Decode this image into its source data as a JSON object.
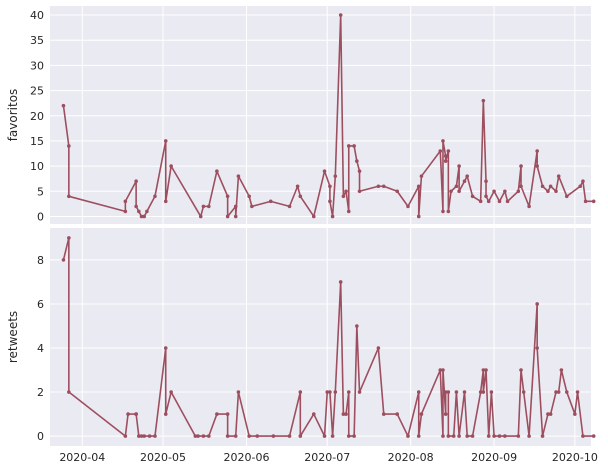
{
  "colors": {
    "panel_bg": "#eaeaf2",
    "grid": "#ffffff",
    "line": "#9e4f5f",
    "text": "#262626"
  },
  "chart_data": [
    {
      "type": "line",
      "ylabel": "favoritos",
      "xlabel": "",
      "ylim": [
        -1.5,
        41.8
      ],
      "yticks": [
        0,
        5,
        10,
        15,
        20,
        25,
        30,
        35,
        40
      ],
      "xlim": [
        "2020-03-20",
        "2020-10-07"
      ],
      "xticks": [
        "2020-04",
        "2020-05",
        "2020-06",
        "2020-07",
        "2020-08",
        "2020-09",
        "2020-10"
      ],
      "grid": true,
      "legend": false,
      "points": [
        [
          "2020-03-25",
          22
        ],
        [
          "2020-03-27",
          14
        ],
        [
          "2020-03-27",
          4
        ],
        [
          "2020-04-17",
          1
        ],
        [
          "2020-04-17",
          3
        ],
        [
          "2020-04-21",
          7
        ],
        [
          "2020-04-21",
          2
        ],
        [
          "2020-04-22",
          1
        ],
        [
          "2020-04-23",
          0
        ],
        [
          "2020-04-24",
          0
        ],
        [
          "2020-04-25",
          1
        ],
        [
          "2020-04-28",
          4
        ],
        [
          "2020-05-02",
          15
        ],
        [
          "2020-05-02",
          3
        ],
        [
          "2020-05-04",
          10
        ],
        [
          "2020-05-15",
          0
        ],
        [
          "2020-05-16",
          2
        ],
        [
          "2020-05-18",
          2
        ],
        [
          "2020-05-21",
          9
        ],
        [
          "2020-05-25",
          4
        ],
        [
          "2020-05-25",
          0
        ],
        [
          "2020-05-28",
          2
        ],
        [
          "2020-05-28",
          0
        ],
        [
          "2020-05-29",
          8
        ],
        [
          "2020-06-02",
          4
        ],
        [
          "2020-06-03",
          2
        ],
        [
          "2020-06-10",
          3
        ],
        [
          "2020-06-17",
          2
        ],
        [
          "2020-06-20",
          6
        ],
        [
          "2020-06-21",
          4
        ],
        [
          "2020-06-26",
          0
        ],
        [
          "2020-06-30",
          9
        ],
        [
          "2020-07-02",
          6
        ],
        [
          "2020-07-02",
          3
        ],
        [
          "2020-07-03",
          0
        ],
        [
          "2020-07-04",
          8
        ],
        [
          "2020-07-06",
          40
        ],
        [
          "2020-07-07",
          4
        ],
        [
          "2020-07-08",
          5
        ],
        [
          "2020-07-09",
          1
        ],
        [
          "2020-07-09",
          14
        ],
        [
          "2020-07-11",
          14
        ],
        [
          "2020-07-12",
          11
        ],
        [
          "2020-07-13",
          9
        ],
        [
          "2020-07-13",
          5
        ],
        [
          "2020-07-20",
          6
        ],
        [
          "2020-07-22",
          6
        ],
        [
          "2020-07-27",
          5
        ],
        [
          "2020-07-31",
          2
        ],
        [
          "2020-08-04",
          6
        ],
        [
          "2020-08-04",
          0
        ],
        [
          "2020-08-05",
          8
        ],
        [
          "2020-08-12",
          13
        ],
        [
          "2020-08-13",
          1
        ],
        [
          "2020-08-13",
          15
        ],
        [
          "2020-08-14",
          12
        ],
        [
          "2020-08-14",
          11
        ],
        [
          "2020-08-15",
          13
        ],
        [
          "2020-08-15",
          1
        ],
        [
          "2020-08-16",
          5
        ],
        [
          "2020-08-18",
          6
        ],
        [
          "2020-08-19",
          10
        ],
        [
          "2020-08-19",
          5
        ],
        [
          "2020-08-21",
          7
        ],
        [
          "2020-08-22",
          8
        ],
        [
          "2020-08-24",
          4
        ],
        [
          "2020-08-27",
          3
        ],
        [
          "2020-08-28",
          23
        ],
        [
          "2020-08-29",
          7
        ],
        [
          "2020-08-29",
          4
        ],
        [
          "2020-08-30",
          3
        ],
        [
          "2020-09-01",
          5
        ],
        [
          "2020-09-03",
          3
        ],
        [
          "2020-09-05",
          5
        ],
        [
          "2020-09-06",
          3
        ],
        [
          "2020-09-10",
          5
        ],
        [
          "2020-09-11",
          10
        ],
        [
          "2020-09-11",
          6
        ],
        [
          "2020-09-14",
          2
        ],
        [
          "2020-09-17",
          13
        ],
        [
          "2020-09-17",
          10
        ],
        [
          "2020-09-19",
          6
        ],
        [
          "2020-09-21",
          5
        ],
        [
          "2020-09-22",
          6
        ],
        [
          "2020-09-24",
          5
        ],
        [
          "2020-09-25",
          8
        ],
        [
          "2020-09-28",
          4
        ],
        [
          "2020-10-03",
          6
        ],
        [
          "2020-10-04",
          7
        ],
        [
          "2020-10-05",
          3
        ],
        [
          "2020-10-08",
          3
        ]
      ]
    },
    {
      "type": "line",
      "ylabel": "retweets",
      "xlabel": "",
      "ylim": [
        -0.45,
        9.45
      ],
      "yticks": [
        0,
        2,
        4,
        6,
        8
      ],
      "xlim": [
        "2020-03-20",
        "2020-10-07"
      ],
      "xticks": [
        "2020-04",
        "2020-05",
        "2020-06",
        "2020-07",
        "2020-08",
        "2020-09",
        "2020-10"
      ],
      "grid": true,
      "legend": false,
      "points": [
        [
          "2020-03-25",
          8
        ],
        [
          "2020-03-27",
          9
        ],
        [
          "2020-03-27",
          2
        ],
        [
          "2020-04-17",
          0
        ],
        [
          "2020-04-18",
          1
        ],
        [
          "2020-04-21",
          1
        ],
        [
          "2020-04-21",
          1
        ],
        [
          "2020-04-22",
          0
        ],
        [
          "2020-04-23",
          0
        ],
        [
          "2020-04-24",
          0
        ],
        [
          "2020-04-26",
          0
        ],
        [
          "2020-04-28",
          0
        ],
        [
          "2020-05-02",
          4
        ],
        [
          "2020-05-02",
          1
        ],
        [
          "2020-05-04",
          2
        ],
        [
          "2020-05-13",
          0
        ],
        [
          "2020-05-14",
          0
        ],
        [
          "2020-05-16",
          0
        ],
        [
          "2020-05-18",
          0
        ],
        [
          "2020-05-21",
          1
        ],
        [
          "2020-05-25",
          1
        ],
        [
          "2020-05-25",
          0
        ],
        [
          "2020-05-28",
          0
        ],
        [
          "2020-05-29",
          2
        ],
        [
          "2020-06-02",
          0
        ],
        [
          "2020-06-05",
          0
        ],
        [
          "2020-06-11",
          0
        ],
        [
          "2020-06-17",
          0
        ],
        [
          "2020-06-21",
          2
        ],
        [
          "2020-06-21",
          0
        ],
        [
          "2020-06-26",
          1
        ],
        [
          "2020-06-30",
          0
        ],
        [
          "2020-07-01",
          2
        ],
        [
          "2020-07-02",
          2
        ],
        [
          "2020-07-03",
          0
        ],
        [
          "2020-07-04",
          2
        ],
        [
          "2020-07-06",
          7
        ],
        [
          "2020-07-07",
          1
        ],
        [
          "2020-07-08",
          1
        ],
        [
          "2020-07-09",
          2
        ],
        [
          "2020-07-09",
          0
        ],
        [
          "2020-07-11",
          0
        ],
        [
          "2020-07-12",
          5
        ],
        [
          "2020-07-13",
          2
        ],
        [
          "2020-07-20",
          4
        ],
        [
          "2020-07-22",
          1
        ],
        [
          "2020-07-27",
          1
        ],
        [
          "2020-07-31",
          0
        ],
        [
          "2020-08-04",
          2
        ],
        [
          "2020-08-04",
          0
        ],
        [
          "2020-08-05",
          1
        ],
        [
          "2020-08-12",
          3
        ],
        [
          "2020-08-13",
          0
        ],
        [
          "2020-08-13",
          3
        ],
        [
          "2020-08-14",
          1
        ],
        [
          "2020-08-14",
          2
        ],
        [
          "2020-08-15",
          2
        ],
        [
          "2020-08-15",
          0
        ],
        [
          "2020-08-17",
          0
        ],
        [
          "2020-08-18",
          2
        ],
        [
          "2020-08-19",
          0
        ],
        [
          "2020-08-21",
          2
        ],
        [
          "2020-08-22",
          0
        ],
        [
          "2020-08-24",
          0
        ],
        [
          "2020-08-27",
          2
        ],
        [
          "2020-08-28",
          3
        ],
        [
          "2020-08-28",
          2
        ],
        [
          "2020-08-29",
          3
        ],
        [
          "2020-08-30",
          0
        ],
        [
          "2020-08-31",
          2
        ],
        [
          "2020-09-01",
          0
        ],
        [
          "2020-09-03",
          0
        ],
        [
          "2020-09-05",
          0
        ],
        [
          "2020-09-10",
          0
        ],
        [
          "2020-09-11",
          3
        ],
        [
          "2020-09-12",
          2
        ],
        [
          "2020-09-14",
          0
        ],
        [
          "2020-09-17",
          6
        ],
        [
          "2020-09-17",
          4
        ],
        [
          "2020-09-19",
          0
        ],
        [
          "2020-09-21",
          1
        ],
        [
          "2020-09-22",
          1
        ],
        [
          "2020-09-24",
          2
        ],
        [
          "2020-09-25",
          2
        ],
        [
          "2020-09-26",
          3
        ],
        [
          "2020-09-28",
          2
        ],
        [
          "2020-10-01",
          1
        ],
        [
          "2020-10-02",
          2
        ],
        [
          "2020-10-04",
          0
        ],
        [
          "2020-10-08",
          0
        ]
      ]
    }
  ]
}
